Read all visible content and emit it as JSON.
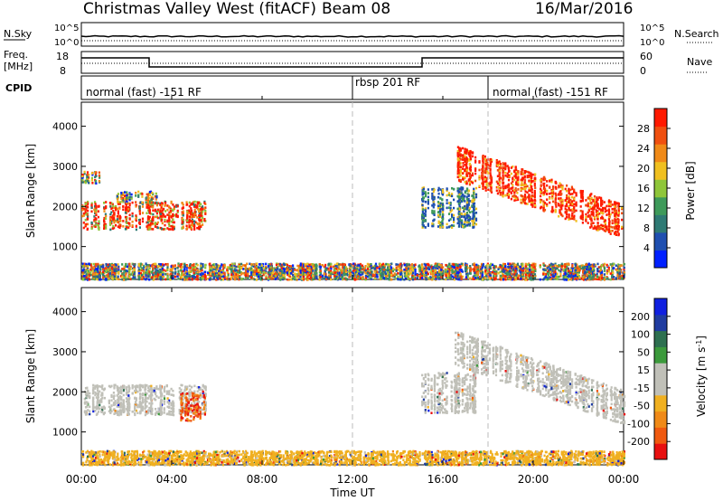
{
  "header": {
    "title": "Christmas Valley West (fitACF)",
    "beam": "Beam 08",
    "date": "16/Mar/2016"
  },
  "top_panels": {
    "nsky_label": "N.Sky",
    "nsky_ticks": [
      "10^5",
      "10^0"
    ],
    "nsearch_label": "N.Search",
    "nsearch_ticks": [
      "10^5",
      "10^0"
    ],
    "freq_label_line1": "Freq.",
    "freq_label_line2": "[MHz]",
    "freq_ticks": [
      "18",
      "8"
    ],
    "nave_label": "Nave",
    "nave_ticks": [
      "60",
      "0"
    ],
    "cpid_label": "CPID",
    "cpid_modes": [
      "normal (fast) -151 RF",
      "rbsp 201 RF",
      "normal (fast) -151 RF"
    ]
  },
  "colors": {
    "power_scale": [
      "#0020ff",
      "#1f4fb0",
      "#2e7a74",
      "#3e9a5a",
      "#8fc63a",
      "#f0c020",
      "#f08a18",
      "#f05010",
      "#ff1a00"
    ],
    "velocity_scale": [
      "#e81010",
      "#f05a10",
      "#f08a18",
      "#f0b020",
      "#c0c0b8",
      "#c0c0b8",
      "#3c9a3c",
      "#2e7050",
      "#203ca0",
      "#1020e0"
    ],
    "ground_scatter": "#c0c0b8"
  },
  "chart_data": [
    {
      "type": "heatmap",
      "title": "Power",
      "xlabel": "Time UT",
      "ylabel": "Slant Range [km]",
      "x_ticks": [
        "00:00",
        "04:00",
        "08:00",
        "12:00",
        "16:00",
        "20:00",
        "00:00"
      ],
      "y_ticks": [
        "1000",
        "2000",
        "3000",
        "4000"
      ],
      "ylim": [
        180,
        4600
      ],
      "colorbar_label": "Power [dB]",
      "colorbar_ticks": [
        "4",
        "8",
        "12",
        "16",
        "20",
        "24",
        "28"
      ],
      "colorbar_range": [
        0,
        32
      ],
      "regions": [
        {
          "t0": 0.0,
          "t1": 5.5,
          "r0": 1450,
          "r1": 2150,
          "level": "red-green"
        },
        {
          "t0": 0.0,
          "t1": 0.8,
          "r0": 2600,
          "r1": 2900,
          "level": "mixed"
        },
        {
          "t0": 1.5,
          "t1": 3.3,
          "r0": 2100,
          "r1": 2400,
          "level": "mixed"
        },
        {
          "t0": 16.5,
          "t1": 24.0,
          "r0": 1300,
          "r1": 3300,
          "level": "red-orange"
        },
        {
          "t0": 15.0,
          "t1": 17.5,
          "r0": 1500,
          "r1": 2500,
          "level": "blue-green"
        },
        {
          "t0": 0.0,
          "t1": 24.0,
          "r0": 200,
          "r1": 600,
          "level": "noise"
        }
      ]
    },
    {
      "type": "heatmap",
      "title": "Velocity",
      "xlabel": "Time UT",
      "ylabel": "Slant Range [km]",
      "x_ticks": [
        "00:00",
        "04:00",
        "08:00",
        "12:00",
        "16:00",
        "20:00",
        "00:00"
      ],
      "y_ticks": [
        "1000",
        "2000",
        "3000",
        "4000"
      ],
      "ylim": [
        180,
        4600
      ],
      "colorbar_label": "Velocity [m s^-1]",
      "colorbar_ticks": [
        "200",
        "100",
        "50",
        "15",
        "-15",
        "-50",
        "-100",
        "-200"
      ],
      "colorbar_range": [
        -250,
        250
      ],
      "regions": [
        {
          "t0": 0.0,
          "t1": 5.5,
          "r0": 1450,
          "r1": 2200,
          "level": "ground"
        },
        {
          "t0": 4.3,
          "t1": 5.5,
          "r0": 1300,
          "r1": 2000,
          "level": "negative"
        },
        {
          "t0": 16.5,
          "t1": 24.0,
          "r0": 1400,
          "r1": 3300,
          "level": "ground"
        },
        {
          "t0": 15.0,
          "t1": 17.5,
          "r0": 1500,
          "r1": 2500,
          "level": "ground"
        },
        {
          "t0": 0.0,
          "t1": 24.0,
          "r0": 200,
          "r1": 550,
          "level": "slow"
        }
      ]
    }
  ]
}
